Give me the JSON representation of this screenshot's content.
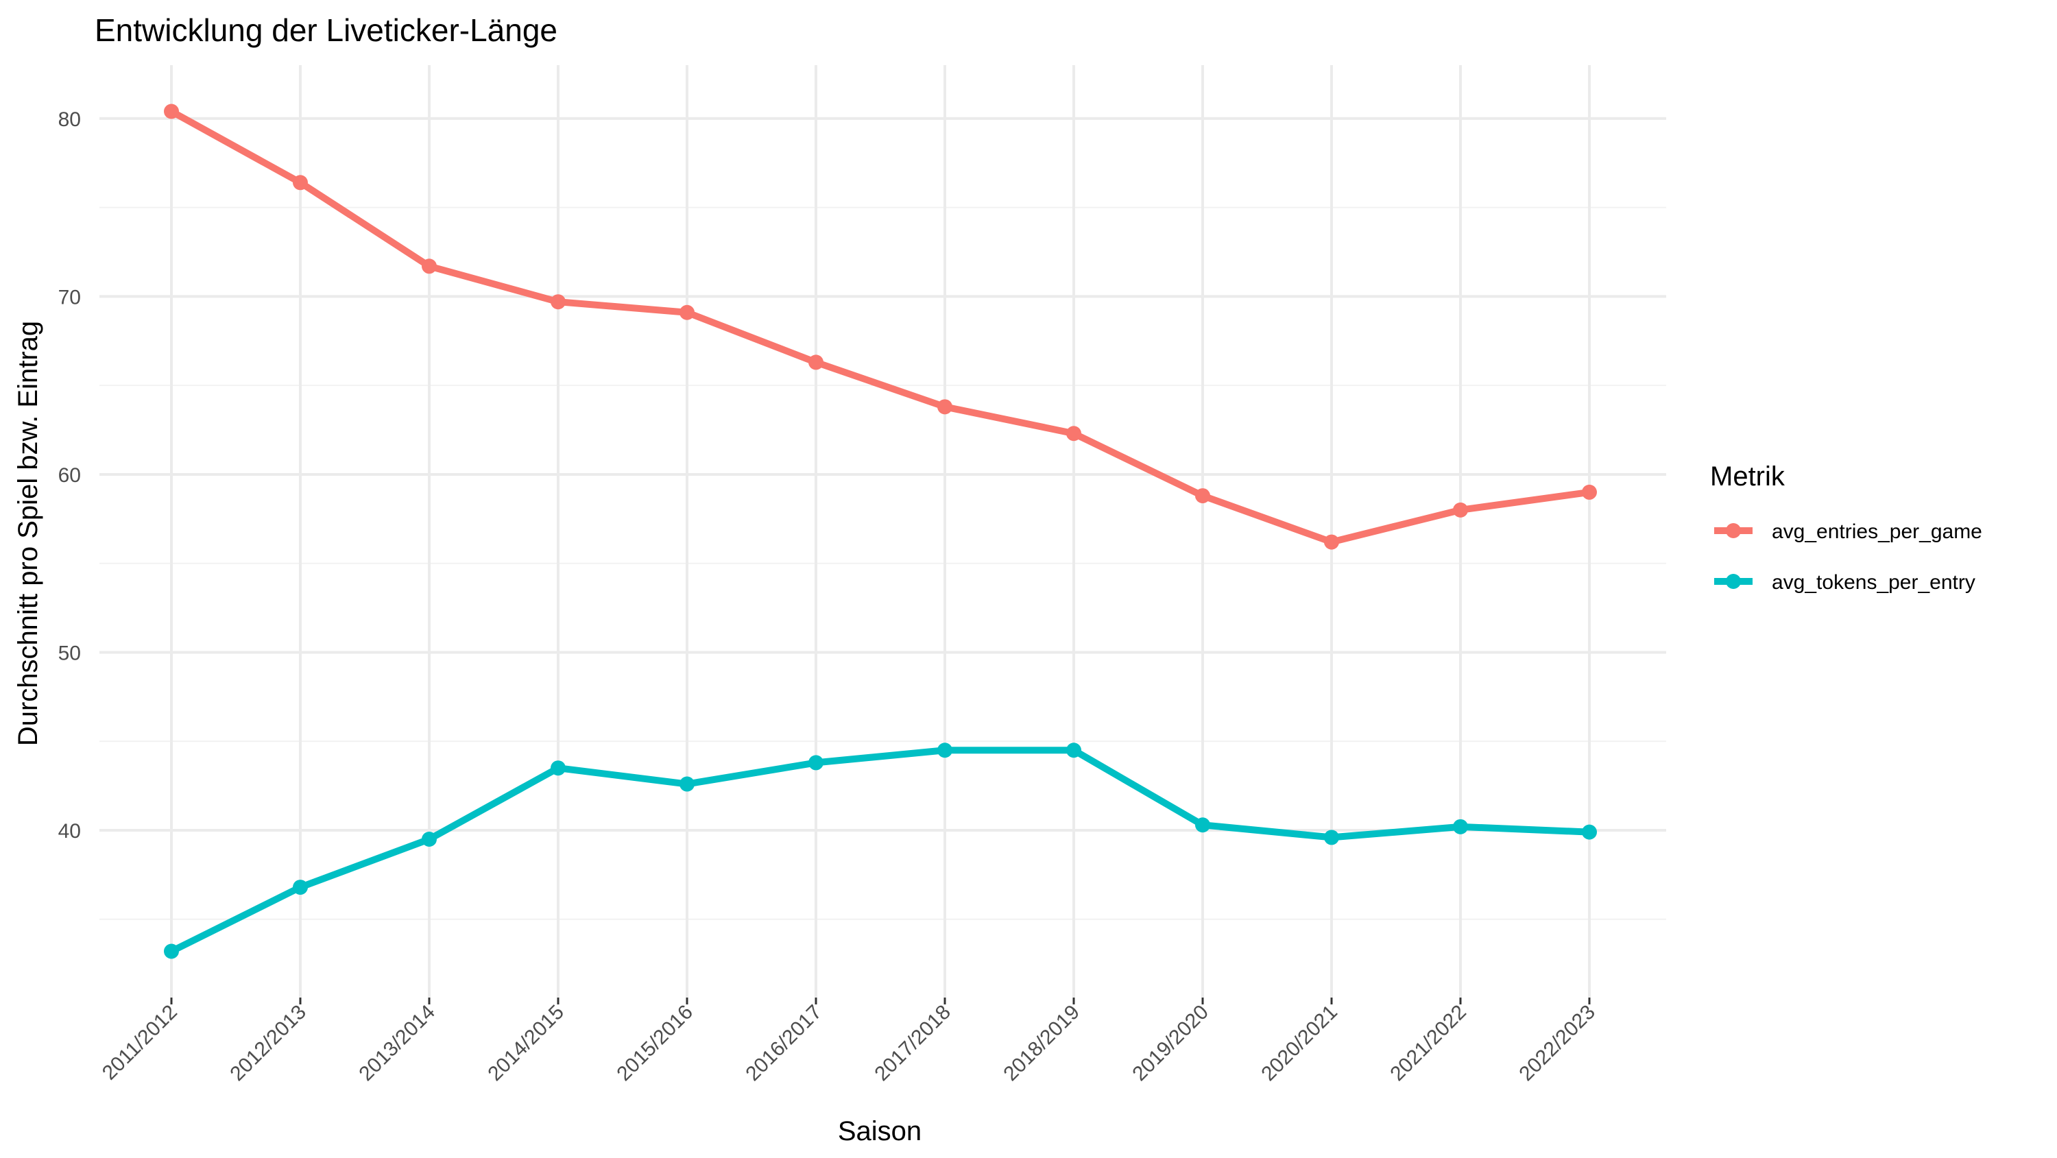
{
  "chart_data": {
    "type": "line",
    "title": "Entwicklung der Liveticker-Länge",
    "xlabel": "Saison",
    "ylabel": "Durchschnitt pro Spiel bzw. Eintrag",
    "categories": [
      "2011/2012",
      "2012/2013",
      "2013/2014",
      "2014/2015",
      "2015/2016",
      "2016/2017",
      "2017/2018",
      "2018/2019",
      "2019/2020",
      "2020/2021",
      "2021/2022",
      "2022/2023"
    ],
    "ylim": [
      30.6,
      83.0
    ],
    "yticks": [
      40,
      50,
      60,
      70,
      80
    ],
    "yticks_minor": [
      35,
      45,
      55,
      65,
      75
    ],
    "grid": true,
    "legend": {
      "title": "Metrik",
      "position": "right"
    },
    "series": [
      {
        "name": "avg_entries_per_game",
        "color": "#F8766D",
        "values": [
          80.4,
          76.4,
          71.7,
          69.7,
          69.1,
          66.3,
          63.8,
          62.3,
          58.8,
          56.2,
          58.0,
          59.0
        ]
      },
      {
        "name": "avg_tokens_per_entry",
        "color": "#00BFC4",
        "values": [
          33.2,
          36.8,
          39.5,
          43.5,
          42.6,
          43.8,
          44.5,
          44.5,
          40.3,
          39.6,
          40.2,
          39.9
        ]
      }
    ]
  }
}
